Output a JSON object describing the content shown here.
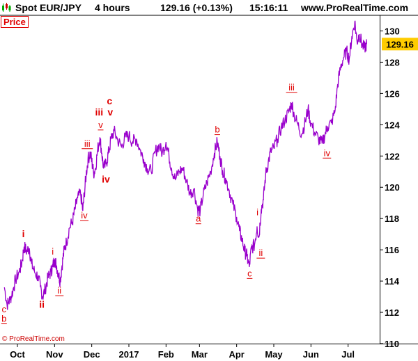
{
  "header": {
    "instrument": "Spot EUR/JPY",
    "timeframe": "4 hours",
    "price_change": "129.16 (+0.13%)",
    "time": "15:16:11",
    "site": "www.ProRealTime.com"
  },
  "price_tag": "Price",
  "copyright": "© ProRealTime.com",
  "colors": {
    "series": "#9900cc",
    "wave": "#e00000",
    "last_price_bg": "#ffcc00"
  },
  "chart_data": {
    "type": "line",
    "title": "",
    "xlabel": "",
    "ylabel": "",
    "ylim": [
      110,
      131
    ],
    "y_ticks": [
      "110",
      "112",
      "114",
      "116",
      "118",
      "120",
      "122",
      "124",
      "126",
      "128",
      "130"
    ],
    "x_ticks": [
      {
        "label": "Oct",
        "pos": 0.0
      },
      {
        "label": "Nov",
        "pos": 1.0
      },
      {
        "label": "Dec",
        "pos": 2.0
      },
      {
        "label": "2017",
        "pos": 3.0
      },
      {
        "label": "Feb",
        "pos": 4.0
      },
      {
        "label": "Mar",
        "pos": 4.9
      },
      {
        "label": "Apr",
        "pos": 5.9
      },
      {
        "label": "May",
        "pos": 6.9
      },
      {
        "label": "Jun",
        "pos": 7.9
      },
      {
        "label": "Jul",
        "pos": 8.9
      }
    ],
    "x_range": [
      -0.3,
      9.5
    ],
    "last_price": "129.16",
    "last_price_value": 129.16,
    "series": [
      {
        "points": [
          [
            -0.35,
            113.6
          ],
          [
            -0.28,
            112.5
          ],
          [
            -0.2,
            112.8
          ],
          [
            -0.12,
            113.4
          ],
          [
            -0.05,
            114.1
          ],
          [
            0.05,
            114.6
          ],
          [
            0.12,
            115.2
          ],
          [
            0.18,
            116.2
          ],
          [
            0.25,
            115.9
          ],
          [
            0.32,
            116.1
          ],
          [
            0.38,
            115.1
          ],
          [
            0.46,
            114.6
          ],
          [
            0.55,
            114.3
          ],
          [
            0.62,
            113.6
          ],
          [
            0.68,
            113.0
          ],
          [
            0.75,
            113.5
          ],
          [
            0.82,
            114.2
          ],
          [
            0.9,
            114.6
          ],
          [
            0.95,
            114.9
          ],
          [
            1.0,
            115.4
          ],
          [
            1.05,
            115.0
          ],
          [
            1.1,
            114.5
          ],
          [
            1.15,
            114.0
          ],
          [
            1.2,
            115.0
          ],
          [
            1.26,
            116.0
          ],
          [
            1.32,
            116.5
          ],
          [
            1.4,
            117.4
          ],
          [
            1.48,
            117.8
          ],
          [
            1.55,
            118.6
          ],
          [
            1.62,
            119.3
          ],
          [
            1.7,
            119.6
          ],
          [
            1.76,
            118.5
          ],
          [
            1.8,
            119.6
          ],
          [
            1.85,
            120.8
          ],
          [
            1.9,
            121.8
          ],
          [
            1.96,
            122.2
          ],
          [
            2.0,
            121.7
          ],
          [
            2.05,
            120.9
          ],
          [
            2.1,
            121.2
          ],
          [
            2.16,
            122.4
          ],
          [
            2.22,
            123.2
          ],
          [
            2.27,
            122.2
          ],
          [
            2.32,
            121.2
          ],
          [
            2.4,
            121.6
          ],
          [
            2.46,
            122.3
          ],
          [
            2.52,
            123.1
          ],
          [
            2.6,
            123.6
          ],
          [
            2.7,
            123.0
          ],
          [
            2.8,
            122.6
          ],
          [
            2.9,
            123.2
          ],
          [
            3.0,
            123.3
          ],
          [
            3.1,
            122.9
          ],
          [
            3.2,
            123.1
          ],
          [
            3.3,
            122.4
          ],
          [
            3.4,
            121.8
          ],
          [
            3.5,
            121.2
          ],
          [
            3.6,
            121.0
          ],
          [
            3.7,
            122.2
          ],
          [
            3.8,
            122.7
          ],
          [
            3.9,
            122.2
          ],
          [
            4.0,
            122.9
          ],
          [
            4.08,
            122.0
          ],
          [
            4.15,
            121.2
          ],
          [
            4.25,
            120.5
          ],
          [
            4.35,
            121.0
          ],
          [
            4.45,
            121.2
          ],
          [
            4.55,
            120.4
          ],
          [
            4.65,
            119.6
          ],
          [
            4.75,
            119.9
          ],
          [
            4.85,
            118.6
          ],
          [
            4.92,
            118.5
          ],
          [
            5.0,
            119.5
          ],
          [
            5.1,
            120.3
          ],
          [
            5.2,
            121.0
          ],
          [
            5.3,
            122.2
          ],
          [
            5.38,
            122.9
          ],
          [
            5.45,
            122.0
          ],
          [
            5.52,
            121.1
          ],
          [
            5.6,
            120.6
          ],
          [
            5.7,
            119.8
          ],
          [
            5.8,
            118.9
          ],
          [
            5.9,
            118.1
          ],
          [
            5.98,
            117.2
          ],
          [
            6.05,
            116.6
          ],
          [
            6.12,
            115.9
          ],
          [
            6.18,
            115.6
          ],
          [
            6.24,
            114.9
          ],
          [
            6.3,
            116.1
          ],
          [
            6.38,
            116.3
          ],
          [
            6.45,
            117.5
          ],
          [
            6.5,
            116.8
          ],
          [
            6.56,
            118.6
          ],
          [
            6.62,
            119.2
          ],
          [
            6.68,
            120.8
          ],
          [
            6.75,
            121.6
          ],
          [
            6.82,
            122.3
          ],
          [
            6.9,
            122.5
          ],
          [
            7.0,
            123.1
          ],
          [
            7.1,
            123.8
          ],
          [
            7.2,
            124.3
          ],
          [
            7.3,
            124.8
          ],
          [
            7.38,
            125.4
          ],
          [
            7.45,
            124.6
          ],
          [
            7.55,
            124.0
          ],
          [
            7.65,
            123.4
          ],
          [
            7.75,
            124.2
          ],
          [
            7.82,
            125.0
          ],
          [
            7.9,
            124.1
          ],
          [
            8.0,
            123.5
          ],
          [
            8.1,
            123.1
          ],
          [
            8.2,
            122.8
          ],
          [
            8.28,
            123.4
          ],
          [
            8.35,
            123.9
          ],
          [
            8.45,
            124.1
          ],
          [
            8.55,
            124.9
          ],
          [
            8.62,
            126.6
          ],
          [
            8.7,
            127.7
          ],
          [
            8.78,
            128.3
          ],
          [
            8.86,
            128.7
          ],
          [
            8.93,
            128.2
          ],
          [
            9.0,
            129.6
          ],
          [
            9.08,
            130.6
          ],
          [
            9.14,
            129.3
          ],
          [
            9.2,
            129.8
          ],
          [
            9.28,
            129.1
          ],
          [
            9.34,
            128.9
          ],
          [
            9.4,
            129.16
          ]
        ]
      }
    ],
    "annotations": [
      {
        "text": "c",
        "x": -0.36,
        "y": 112.0,
        "style": "small"
      },
      {
        "text": "b",
        "x": -0.36,
        "y": 111.4,
        "style": "underline"
      },
      {
        "text": "i",
        "x": 0.16,
        "y": 116.8,
        "style": "bold"
      },
      {
        "text": "ii",
        "x": 0.66,
        "y": 112.3,
        "style": "bold"
      },
      {
        "text": "i",
        "x": 0.95,
        "y": 115.7,
        "style": "small"
      },
      {
        "text": "ii",
        "x": 1.13,
        "y": 113.2,
        "style": "underline"
      },
      {
        "text": "iii",
        "x": 1.88,
        "y": 122.6,
        "style": "underline"
      },
      {
        "text": "iv",
        "x": 1.8,
        "y": 118.0,
        "style": "underline"
      },
      {
        "text": "iii",
        "x": 2.2,
        "y": 124.6,
        "style": "bold"
      },
      {
        "text": "v",
        "x": 2.24,
        "y": 123.8,
        "style": "underline"
      },
      {
        "text": "c",
        "x": 2.48,
        "y": 125.3,
        "style": "bold"
      },
      {
        "text": "v",
        "x": 2.5,
        "y": 124.6,
        "style": "bold"
      },
      {
        "text": "iv",
        "x": 2.38,
        "y": 120.3,
        "style": "bold"
      },
      {
        "text": "a",
        "x": 4.87,
        "y": 117.8,
        "style": "underline"
      },
      {
        "text": "b",
        "x": 5.38,
        "y": 123.5,
        "style": "underline"
      },
      {
        "text": "i",
        "x": 6.46,
        "y": 118.2,
        "style": "small"
      },
      {
        "text": "ii",
        "x": 6.55,
        "y": 115.6,
        "style": "underline"
      },
      {
        "text": "c",
        "x": 6.25,
        "y": 114.3,
        "style": "underline"
      },
      {
        "text": "iii",
        "x": 7.38,
        "y": 126.2,
        "style": "underline"
      },
      {
        "text": "iv",
        "x": 8.33,
        "y": 122.0,
        "style": "underline"
      }
    ]
  }
}
